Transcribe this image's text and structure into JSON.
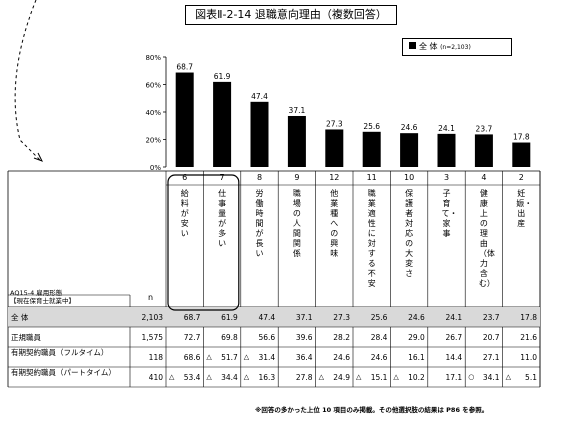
{
  "title": "図表Ⅱ-2-14 退職意向理由（複数回答）",
  "legend": {
    "label": "全 体",
    "n_note": "(n=2,103)"
  },
  "chart_data": {
    "type": "bar",
    "y_ticks": [
      "80%",
      "60%",
      "40%",
      "20%",
      "0%"
    ],
    "ylim": [
      0,
      80
    ],
    "codes": [
      "6",
      "7",
      "8",
      "9",
      "12",
      "11",
      "10",
      "3",
      "4",
      "2"
    ],
    "categories": [
      "給料が安い",
      "仕事量が多い",
      "労働時間が長い",
      "職場の人間関係",
      "他業種への興味",
      "職業適性に対する不安",
      "保護者対応の大変さ",
      "子育て・家事",
      "健康上の理由（体力含む）",
      "妊娠・出産"
    ],
    "values": [
      68.7,
      61.9,
      47.4,
      37.1,
      27.3,
      25.6,
      24.6,
      24.1,
      23.7,
      17.8
    ]
  },
  "table": {
    "header_question": "AQ15-4 雇用形態",
    "header_sub": "【現在保育士就業中】",
    "n_header": "n",
    "rows": [
      {
        "label": "全 体",
        "n": "2,103",
        "cells": [
          "68.7",
          "61.9",
          "47.4",
          "37.1",
          "27.3",
          "25.6",
          "24.6",
          "24.1",
          "23.7",
          "17.8"
        ],
        "marks": [
          "",
          "",
          "",
          "",
          "",
          "",
          "",
          "",
          "",
          ""
        ]
      },
      {
        "label": "正規職員",
        "n": "1,575",
        "cells": [
          "72.7",
          "69.8",
          "56.6",
          "39.6",
          "28.2",
          "28.4",
          "29.0",
          "26.7",
          "20.7",
          "21.6"
        ],
        "marks": [
          "",
          "",
          "",
          "",
          "",
          "",
          "",
          "",
          "",
          ""
        ]
      },
      {
        "label": "有期契約職員（フルタイム）",
        "n": "118",
        "cells": [
          "68.6",
          "51.7",
          "31.4",
          "36.4",
          "24.6",
          "24.6",
          "16.1",
          "14.4",
          "27.1",
          "11.0"
        ],
        "marks": [
          "",
          "△",
          "△",
          "",
          "",
          "",
          "",
          "",
          "",
          ""
        ]
      },
      {
        "label": "有期契約職員（パートタイム）",
        "n": "410",
        "cells": [
          "53.4",
          "34.4",
          "16.3",
          "27.8",
          "24.9",
          "15.1",
          "10.2",
          "17.1",
          "34.1",
          "5.1"
        ],
        "marks": [
          "△",
          "△",
          "△",
          "",
          "△",
          "△",
          "△",
          "",
          "○",
          "△"
        ]
      }
    ]
  },
  "footnote": "※回答の多かった上位 10 項目のみ掲載。その他選択肢の結果は P86 を参照。"
}
